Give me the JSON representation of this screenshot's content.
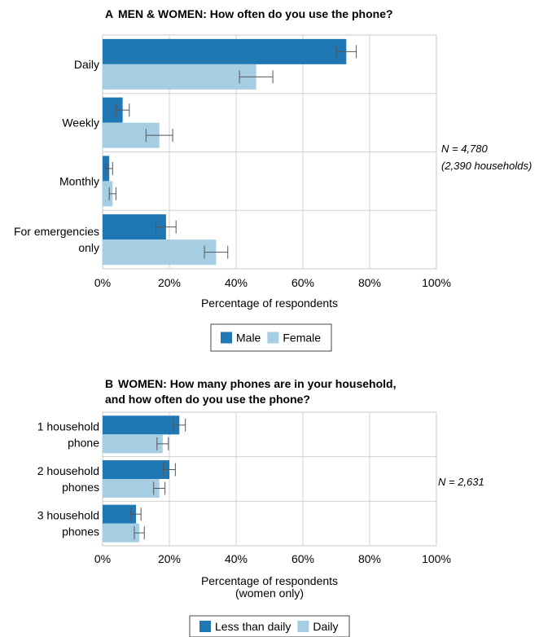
{
  "chart_data": [
    {
      "type": "bar",
      "orientation": "horizontal",
      "title_prefix": "A",
      "title": "MEN & WOMEN: How often do you use the phone?",
      "categories": [
        "Daily",
        "Weekly",
        "Monthly",
        "For emergencies only"
      ],
      "category_lines": [
        [
          "Daily"
        ],
        [
          "Weekly"
        ],
        [
          "Monthly"
        ],
        [
          "For emergencies",
          "only"
        ]
      ],
      "series": [
        {
          "name": "Male",
          "color": "#1f77b4",
          "values": [
            73,
            6,
            2,
            19
          ],
          "error": [
            3,
            2,
            1,
            3
          ]
        },
        {
          "name": "Female",
          "color": "#a6cee3",
          "values": [
            46,
            17,
            3,
            34
          ],
          "error": [
            5,
            4,
            1,
            3.5
          ]
        }
      ],
      "xlim": [
        0,
        100
      ],
      "xticks": [
        "0%",
        "20%",
        "40%",
        "60%",
        "80%",
        "100%"
      ],
      "xlabel_lines": [
        "Percentage of respondents"
      ],
      "note_lines": [
        "N = 4,780",
        "(2,390 households)"
      ],
      "grid": true,
      "legend": "bottom-center"
    },
    {
      "type": "bar",
      "orientation": "horizontal",
      "title_prefix": "B",
      "title": "WOMEN: How many phones are in your household,",
      "title_line2": "and how often do you use the phone?",
      "categories": [
        "1 household phone",
        "2 household phones",
        "3 household phones"
      ],
      "category_lines": [
        [
          "1 household",
          "phone"
        ],
        [
          "2 household",
          "phones"
        ],
        [
          "3 household",
          "phones"
        ]
      ],
      "series": [
        {
          "name": "Less than daily",
          "color": "#1f77b4",
          "values": [
            23,
            20,
            10
          ],
          "error": [
            1.8,
            1.8,
            1.5
          ]
        },
        {
          "name": "Daily",
          "color": "#a6cee3",
          "values": [
            18,
            17,
            11
          ],
          "error": [
            1.7,
            1.7,
            1.5
          ]
        }
      ],
      "xlim": [
        0,
        100
      ],
      "xticks": [
        "0%",
        "20%",
        "40%",
        "60%",
        "80%",
        "100%"
      ],
      "xlabel_lines": [
        "Percentage of respondents",
        "(women only)"
      ],
      "note_lines": [
        "N = 2,631"
      ],
      "grid": true,
      "legend": "bottom-center"
    }
  ]
}
